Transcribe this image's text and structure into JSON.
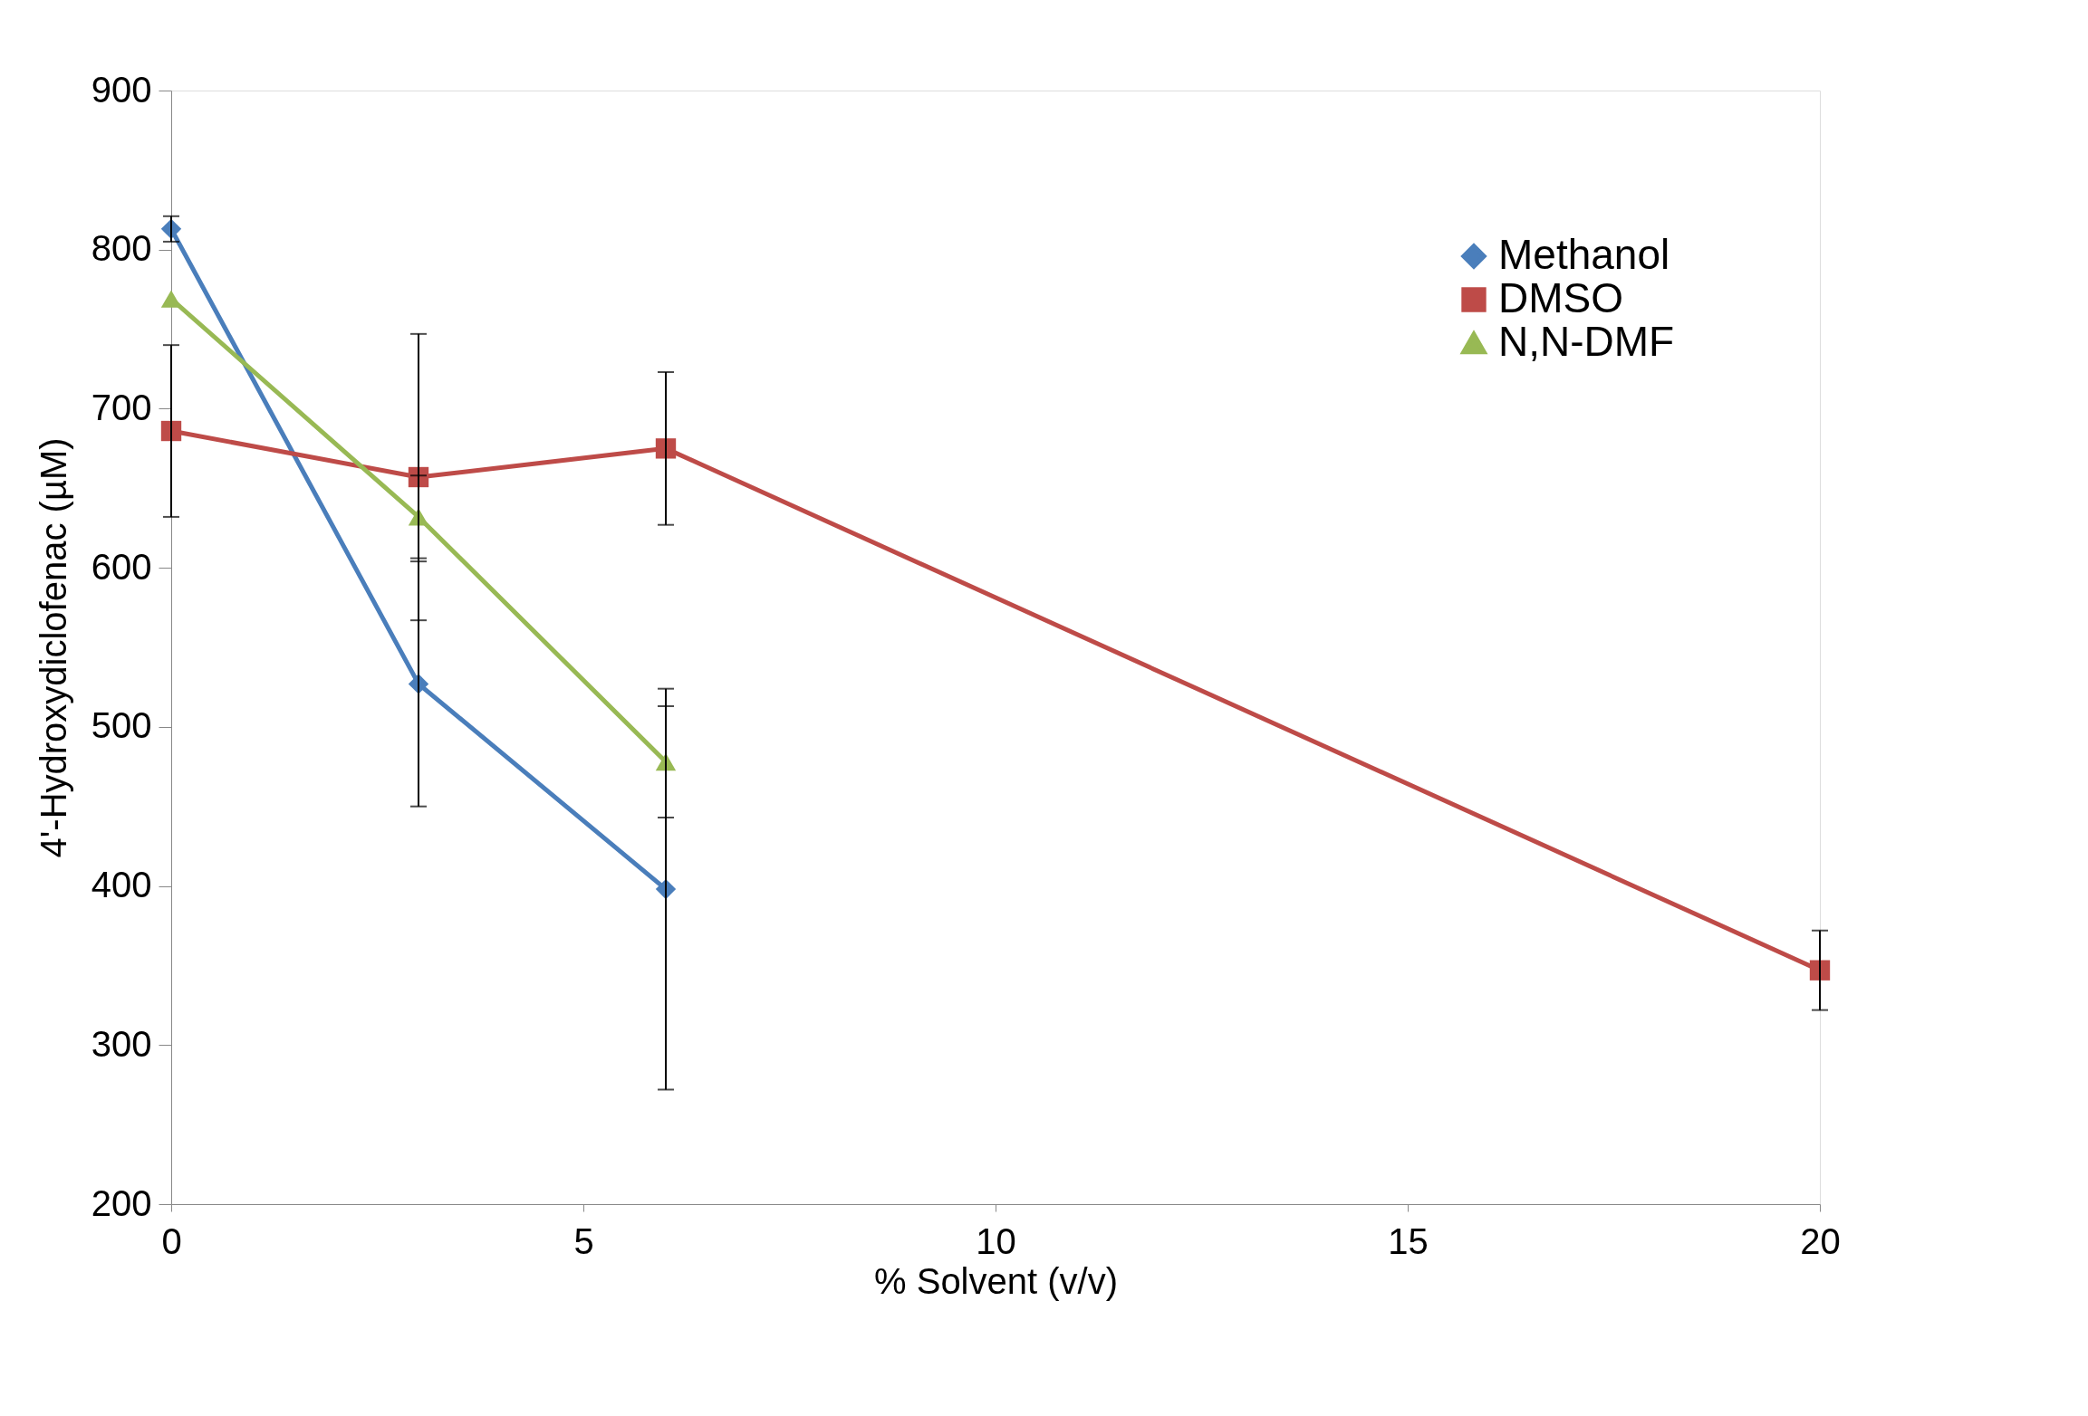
{
  "chart_data": {
    "type": "line",
    "xlabel": "% Solvent (v/v)",
    "ylabel": "4'-Hydroxydiclofenac (µM)",
    "xlim": [
      0,
      20
    ],
    "xticks": [
      0,
      5,
      10,
      15,
      20
    ],
    "ylim": [
      200,
      900
    ],
    "yticks": [
      200,
      300,
      400,
      500,
      600,
      700,
      800,
      900
    ],
    "grid": false,
    "legend": "top right",
    "series": [
      {
        "name": "Methanol",
        "color": "#4a7ebb",
        "marker": "diamond",
        "x": [
          0,
          3,
          6
        ],
        "values": [
          813,
          527,
          398
        ],
        "errors": [
          8,
          77,
          126
        ]
      },
      {
        "name": "DMSO",
        "color": "#be4b48",
        "marker": "square",
        "x": [
          0,
          3,
          6,
          20
        ],
        "values": [
          686,
          657,
          675,
          347
        ],
        "errors": [
          54,
          90,
          48,
          25
        ]
      },
      {
        "name": "N,N-DMF",
        "color": "#98b954",
        "marker": "triangle",
        "x": [
          0,
          3,
          6
        ],
        "values": [
          769,
          632,
          478
        ],
        "errors": [
          null,
          26,
          35
        ]
      }
    ]
  }
}
